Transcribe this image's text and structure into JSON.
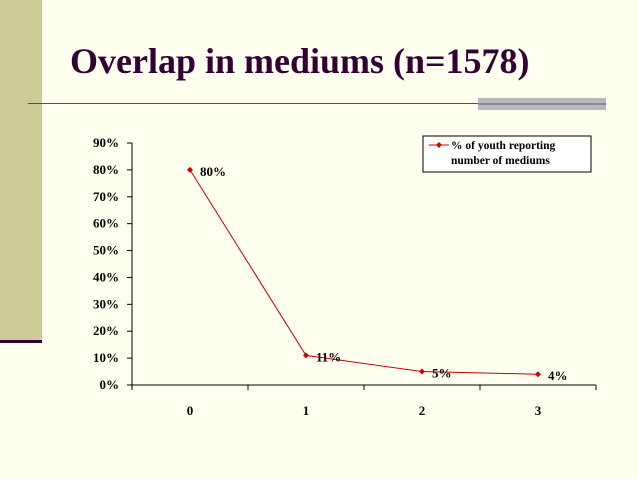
{
  "slide": {
    "title": "Overlap in mediums (n=1578)"
  },
  "colors": {
    "accent_bar": "#cccc99",
    "title": "#330033",
    "series": "#cc0000"
  },
  "chart_data": {
    "type": "line",
    "title": "",
    "xlabel": "",
    "ylabel": "",
    "categories": [
      "0",
      "1",
      "2",
      "3"
    ],
    "y_ticks": [
      "0%",
      "10%",
      "20%",
      "30%",
      "40%",
      "50%",
      "60%",
      "70%",
      "80%",
      "90%"
    ],
    "ylim": [
      0,
      90
    ],
    "grid": false,
    "legend_position": "top-right",
    "series": [
      {
        "name": "% of youth reporting number of mediums",
        "legend_lines": [
          "% of youth reporting",
          "number of mediums"
        ],
        "values": [
          80,
          11,
          5,
          4
        ],
        "labels": [
          "80%",
          "11%",
          "5%",
          "4%"
        ]
      }
    ]
  }
}
